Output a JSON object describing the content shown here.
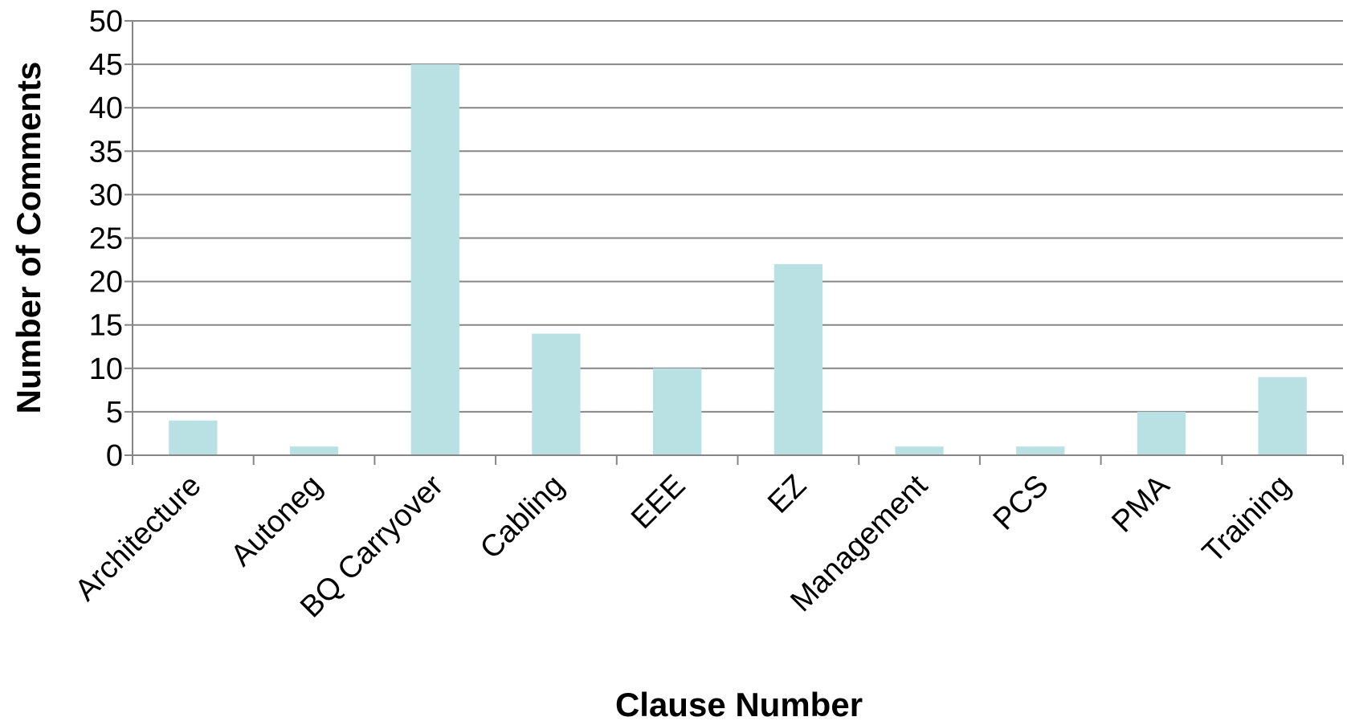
{
  "chart_data": {
    "type": "bar",
    "title": "",
    "xlabel": "Clause Number",
    "ylabel": "Number of Comments",
    "categories": [
      "Architecture",
      "Autoneg",
      "BQ Carryover",
      "Cabling",
      "EEE",
      "EZ",
      "Management",
      "PCS",
      "PMA",
      "Training"
    ],
    "values": [
      4,
      1,
      45,
      14,
      10,
      22,
      1,
      1,
      5,
      9
    ],
    "ylim": [
      0,
      50
    ],
    "yticks": [
      "0",
      "5",
      "10",
      "15",
      "20",
      "25",
      "30",
      "35",
      "40",
      "45",
      "50"
    ],
    "grid": true,
    "legend": "none",
    "colors": {
      "bar": "#b9e0e3",
      "grid": "#868686",
      "axis": "#868686"
    }
  }
}
